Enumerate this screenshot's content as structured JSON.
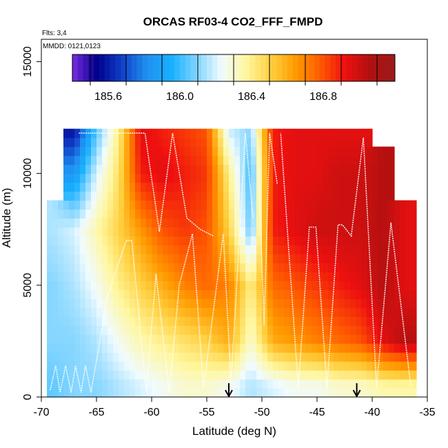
{
  "chart_data": {
    "type": "heatmap",
    "title": "ORCAS RF03-4 CO2_FFF_FMPD",
    "flights_note": "Flts: 3,4",
    "date_note": "MMDD: 0121,0123",
    "xlabel": "Latitude (deg N)",
    "ylabel": "Altitude (m)",
    "xlim": [
      -70,
      -35
    ],
    "ylim": [
      0,
      16000
    ],
    "x_ticks": [
      -70,
      -65,
      -60,
      -55,
      -50,
      -45,
      -40,
      -35
    ],
    "x_tick_labels": [
      "-70",
      "-65",
      "-60",
      "-55",
      "-50",
      "-45",
      "-40",
      "-35"
    ],
    "y_ticks": [
      0,
      5000,
      10000,
      15000
    ],
    "y_tick_labels": [
      "0",
      "5000",
      "10000",
      "15000"
    ],
    "colorbar": {
      "min": 185.4,
      "max": 187.2,
      "ticks": [
        185.6,
        186.0,
        186.4,
        186.8
      ],
      "tick_labels": [
        "185.6",
        "186.0",
        "186.4",
        "186.8"
      ],
      "colors": [
        "#7b2be0",
        "#00008b",
        "#1040c8",
        "#2090f0",
        "#18b0ff",
        "#80d4ff",
        "#f0fbff",
        "#fff7a0",
        "#ffd040",
        "#ff9a00",
        "#ff5a00",
        "#ee1010",
        "#b01010",
        "#9b1b1b"
      ]
    },
    "field": [
      {
        "lat": -69,
        "alts": [
          500,
          2500,
          5000,
          7500
        ],
        "values": [
          186.05,
          186.1,
          186.1,
          186.15
        ]
      },
      {
        "lat": -67,
        "alts": [
          500,
          2500,
          5000,
          7500,
          10000,
          11800
        ],
        "values": [
          186.1,
          186.1,
          186.15,
          186.2,
          185.85,
          185.6
        ]
      },
      {
        "lat": -65,
        "alts": [
          500,
          2500,
          5000,
          7500,
          10000,
          11800
        ],
        "values": [
          186.1,
          186.15,
          186.25,
          186.35,
          186.2,
          186.05
        ]
      },
      {
        "lat": -63,
        "alts": [
          500,
          2500,
          5000,
          7500,
          10000,
          11800
        ],
        "values": [
          186.15,
          186.25,
          186.4,
          186.5,
          186.45,
          186.4
        ]
      },
      {
        "lat": -61,
        "alts": [
          500,
          2500,
          5000,
          7500,
          10000,
          11800
        ],
        "values": [
          186.2,
          186.35,
          186.5,
          186.65,
          186.9,
          186.95
        ]
      },
      {
        "lat": -59,
        "alts": [
          500,
          2500,
          5000,
          7500,
          10000,
          11800
        ],
        "values": [
          186.25,
          186.4,
          186.6,
          186.8,
          186.95,
          186.9
        ]
      },
      {
        "lat": -57,
        "alts": [
          500,
          2500,
          5000,
          7500,
          10000,
          11800
        ],
        "values": [
          186.3,
          186.45,
          186.7,
          186.85,
          186.9,
          186.85
        ]
      },
      {
        "lat": -55,
        "alts": [
          500,
          2500,
          5000,
          7500,
          10000,
          11800
        ],
        "values": [
          186.3,
          186.5,
          186.75,
          186.8,
          186.85,
          186.8
        ]
      },
      {
        "lat": -53,
        "alts": [
          500,
          2500,
          5000,
          7500,
          10000,
          11800
        ],
        "values": [
          186.25,
          186.6,
          186.7,
          186.5,
          186.4,
          186.2
        ]
      },
      {
        "lat": -51,
        "alts": [
          500,
          2500,
          5000,
          7500,
          10000,
          11800
        ],
        "values": [
          186.15,
          186.3,
          186.4,
          186.05,
          186.0,
          186.1
        ]
      },
      {
        "lat": -49,
        "alts": [
          500,
          2500,
          5000,
          7500,
          10000,
          11800
        ],
        "values": [
          186.2,
          186.6,
          186.75,
          186.9,
          186.9,
          186.9
        ]
      },
      {
        "lat": -47,
        "alts": [
          500,
          2500,
          5000,
          7500,
          10000,
          11800
        ],
        "values": [
          186.25,
          186.65,
          186.8,
          186.95,
          186.95,
          186.95
        ]
      },
      {
        "lat": -45,
        "alts": [
          500,
          2500,
          5000,
          7500,
          10000,
          11800
        ],
        "values": [
          186.25,
          186.7,
          186.85,
          187.0,
          186.95,
          186.95
        ]
      },
      {
        "lat": -43,
        "alts": [
          500,
          2500,
          5000,
          7500,
          10000,
          11800
        ],
        "values": [
          186.3,
          186.75,
          186.9,
          187.0,
          187.0,
          186.95
        ]
      },
      {
        "lat": -41,
        "alts": [
          500,
          2500,
          5000,
          7500,
          10000,
          11800
        ],
        "values": [
          186.3,
          186.8,
          186.95,
          187.0,
          187.0,
          186.95
        ]
      },
      {
        "lat": -39,
        "alts": [
          500,
          2500,
          5000,
          7500,
          10000
        ],
        "values": [
          186.35,
          186.95,
          187.05,
          187.05,
          187.05
        ]
      },
      {
        "lat": -37,
        "alts": [
          500,
          2500,
          5000,
          7500
        ],
        "values": [
          186.35,
          187.05,
          186.95,
          186.95
        ]
      }
    ],
    "flight_tracks": [
      [
        [
          -69.2,
          300
        ],
        [
          -68.7,
          1400
        ],
        [
          -68.3,
          200
        ],
        [
          -67.8,
          1400
        ],
        [
          -67.3,
          200
        ],
        [
          -66.9,
          1400
        ],
        [
          -66.4,
          200
        ],
        [
          -66.0,
          1400
        ],
        [
          -65.5,
          200
        ],
        [
          -64.0,
          4500
        ],
        [
          -62.3,
          7000
        ],
        [
          -61.8,
          7000
        ],
        [
          -60.5,
          200
        ],
        [
          -59.6,
          5500
        ],
        [
          -58.4,
          200
        ],
        [
          -57.5,
          5000
        ],
        [
          -56.3,
          7300
        ],
        [
          -55.3,
          400
        ],
        [
          -53.5,
          7300
        ],
        [
          -52.8,
          600
        ],
        [
          -51.5,
          11800
        ],
        [
          -50.8,
          8000
        ]
      ],
      [
        [
          -66.6,
          11800
        ],
        [
          -60.6,
          11800
        ],
        [
          -59.3,
          7400
        ],
        [
          -58.1,
          11800
        ],
        [
          -56.8,
          8000
        ],
        [
          -55.6,
          7500
        ],
        [
          -54.4,
          7200
        ]
      ],
      [
        [
          -50.4,
          11800
        ],
        [
          -49.8,
          3200
        ],
        [
          -49.3,
          11800
        ],
        [
          -48.6,
          9500
        ]
      ],
      [
        [
          -36.5,
          500
        ],
        [
          -38.3,
          7800
        ],
        [
          -39.6,
          400
        ],
        [
          -40.8,
          11600
        ],
        [
          -41.9,
          7200
        ],
        [
          -42.7,
          7700
        ],
        [
          -43.1,
          7700
        ],
        [
          -44.1,
          400
        ],
        [
          -45.1,
          7600
        ],
        [
          -45.7,
          7600
        ],
        [
          -46.7,
          400
        ],
        [
          -48.3,
          11800
        ]
      ]
    ],
    "arrow_markers_lat": [
      -53.0,
      -41.4
    ]
  }
}
